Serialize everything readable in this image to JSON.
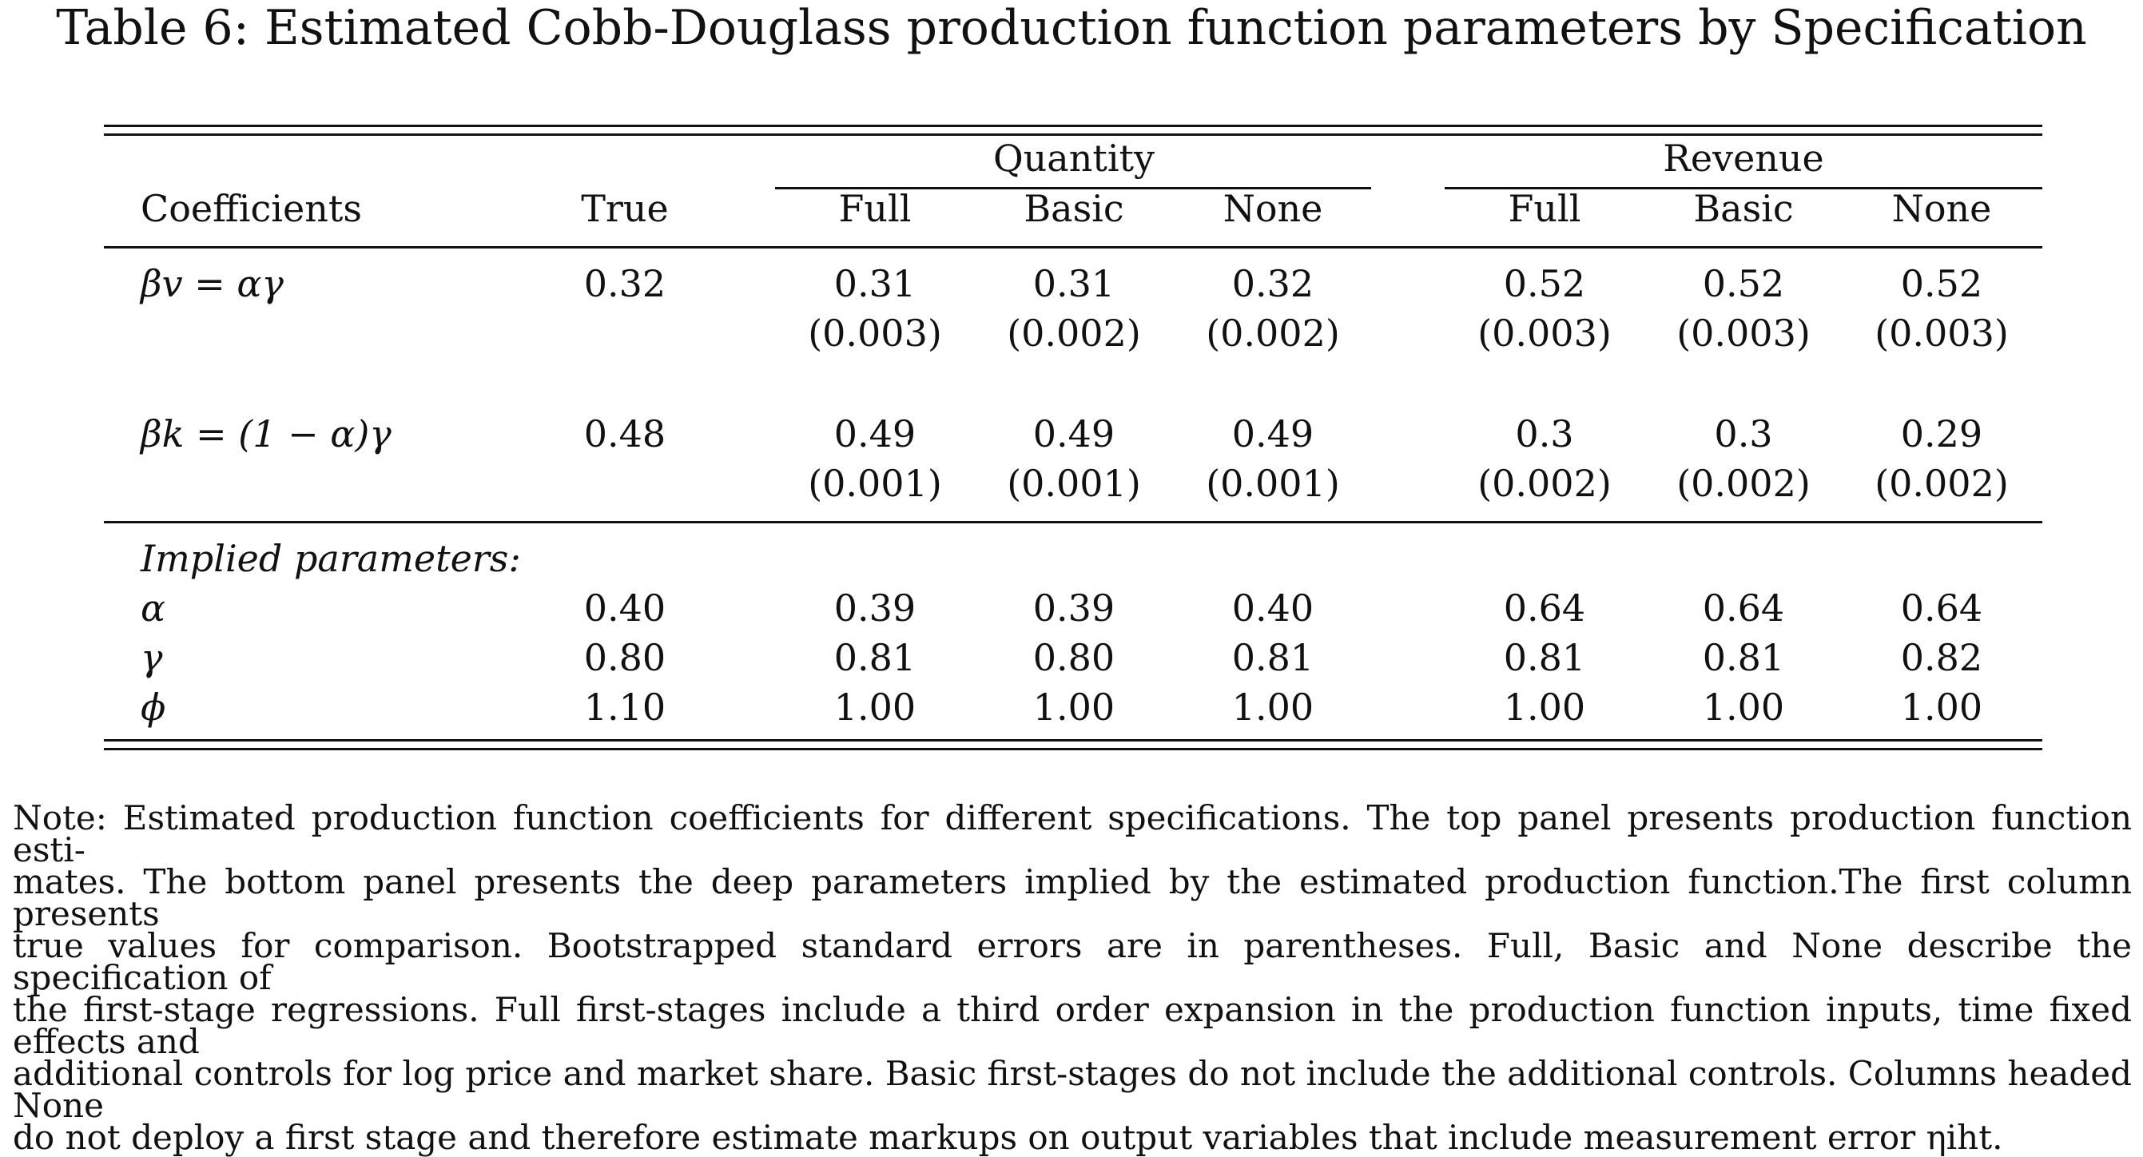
{
  "title": "Table 6: Estimated Cobb-Douglass production function parameters by Specification",
  "groups": {
    "quantity": "Quantity",
    "revenue": "Revenue"
  },
  "header": {
    "coefficients": "Coefficients",
    "true": "True",
    "q_full": "Full",
    "q_basic": "Basic",
    "q_none": "None",
    "r_full": "Full",
    "r_basic": "Basic",
    "r_none": "None"
  },
  "rows": {
    "bv": {
      "label": "βv = αγ",
      "true": "0.32",
      "est": [
        "0.31",
        "0.31",
        "0.32",
        "0.52",
        "0.52",
        "0.52"
      ],
      "se": [
        "(0.003)",
        "(0.002)",
        "(0.002)",
        "(0.003)",
        "(0.003)",
        "(0.003)"
      ]
    },
    "bk": {
      "label": "βk = (1 − α)γ",
      "true": "0.48",
      "est": [
        "0.49",
        "0.49",
        "0.49",
        "0.3",
        "0.3",
        "0.29"
      ],
      "se": [
        "(0.001)",
        "(0.001)",
        "(0.001)",
        "(0.002)",
        "(0.002)",
        "(0.002)"
      ]
    }
  },
  "implied": {
    "heading": "Implied parameters:",
    "alpha": {
      "label": "α",
      "values": [
        "0.40",
        "0.39",
        "0.39",
        "0.40",
        "0.64",
        "0.64",
        "0.64"
      ]
    },
    "gamma": {
      "label": "γ",
      "values": [
        "0.80",
        "0.81",
        "0.80",
        "0.81",
        "0.81",
        "0.81",
        "0.82"
      ]
    },
    "phi": {
      "label": "ϕ",
      "values": [
        "1.10",
        "1.00",
        "1.00",
        "1.00",
        "1.00",
        "1.00",
        "1.00"
      ]
    }
  },
  "note": {
    "line1": "Note: Estimated production function coefficients for different specifications. The top panel presents production function esti-",
    "line2": "mates. The bottom panel presents the deep parameters implied by the estimated production function.The first column presents",
    "line3": "true values for comparison. Bootstrapped standard errors are in parentheses. Full, Basic and None describe the specification of",
    "line4": "the first-stage regressions. Full first-stages include a third order expansion in the production function inputs, time fixed effects and",
    "line5": "additional controls for log price and market share. Basic first-stages do not include the additional controls. Columns headed None",
    "line6": "do not deploy a first stage and therefore estimate markups on output variables that include measurement error ηiht."
  }
}
